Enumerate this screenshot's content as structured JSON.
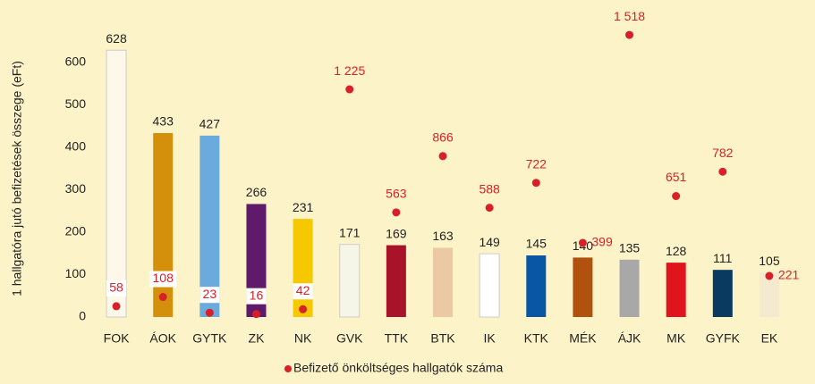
{
  "chart_data": {
    "type": "bar",
    "y_label": "1 hallgatóra jutó befizetések összege (eFt)",
    "categories": [
      "FOK",
      "ÁOK",
      "GYTK",
      "ZK",
      "NK",
      "GVK",
      "TTK",
      "BTK",
      "IK",
      "KTK",
      "MÉK",
      "ÁJK",
      "MK",
      "GYFK",
      "EK"
    ],
    "series": [
      {
        "colors": [
          "#fdf8ea",
          "#d4900a",
          "#6aaadc",
          "#5f1a6a",
          "#f5c800",
          "#f6f6e8",
          "#a8132a",
          "#ecc9a4",
          "#ffffff",
          "#0956a4",
          "#b0520e",
          "#a8a8a8",
          "#e0141c",
          "#0a3a60",
          "#f3ead0"
        ],
        "values": [
          628,
          433,
          427,
          266,
          231,
          171,
          169,
          163,
          149,
          145,
          140,
          135,
          128,
          111,
          105
        ]
      },
      {
        "name": "Befizető önköltséges hallgatók száma",
        "color": "#d8202a",
        "axis": "y2",
        "values": [
          58,
          108,
          23,
          16,
          42,
          1225,
          563,
          866,
          588,
          722,
          399,
          1518,
          651,
          782,
          221
        ],
        "value_labels": [
          "58",
          "108",
          "23",
          "16",
          "42",
          "1 225",
          "563",
          "866",
          "588",
          "722",
          "399",
          "1 518",
          "651",
          "782",
          "221"
        ]
      }
    ],
    "ylim": [
      0,
      700
    ],
    "yticks": [
      0,
      100,
      200,
      300,
      400,
      500,
      600
    ],
    "y2lim": [
      0,
      1600
    ]
  }
}
